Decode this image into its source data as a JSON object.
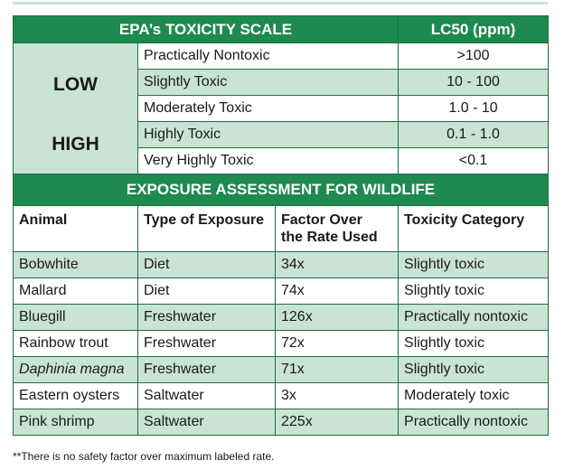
{
  "scale": {
    "title": "EPA’s TOXICITY SCALE",
    "lc50_header": "LC50 (ppm)",
    "low_label": "LOW",
    "high_label": "HIGH",
    "rows": [
      {
        "label": "Practically Nontoxic",
        "value": ">100"
      },
      {
        "label": "Slightly Toxic",
        "value": "10 - 100"
      },
      {
        "label": "Moderately Toxic",
        "value": "1.0 - 10"
      },
      {
        "label": "Highly Toxic",
        "value": "0.1 - 1.0"
      },
      {
        "label": "Very Highly Toxic",
        "value": "<0.1"
      }
    ]
  },
  "exposure": {
    "title": "EXPOSURE ASSESSMENT FOR WILDLIFE",
    "headers": {
      "animal": "Animal",
      "type": "Type of Exposure",
      "factor_line1": "Factor Over",
      "factor_line2": "the Rate Used",
      "category": "Toxicity Category"
    },
    "rows": [
      {
        "animal": "Bobwhite",
        "type": "Diet",
        "factor": "34x",
        "category": "Slightly toxic"
      },
      {
        "animal": "Mallard",
        "type": "Diet",
        "factor": "74x",
        "category": "Slightly toxic"
      },
      {
        "animal": "Bluegill",
        "type": "Freshwater",
        "factor": "126x",
        "category": "Practically nontoxic"
      },
      {
        "animal": "Rainbow trout",
        "type": "Freshwater",
        "factor": "72x",
        "category": "Slightly toxic"
      },
      {
        "animal": "Daphinia magna",
        "type": "Freshwater",
        "factor": "71x",
        "category": "Slightly toxic"
      },
      {
        "animal": "Eastern oysters",
        "type": "Saltwater",
        "factor": "3x",
        "category": "Moderately toxic"
      },
      {
        "animal": "Pink shrimp",
        "type": "Saltwater",
        "factor": "225x",
        "category": "Practically nontoxic"
      }
    ]
  },
  "footnote": "**There is no safety factor over maximum labeled rate."
}
